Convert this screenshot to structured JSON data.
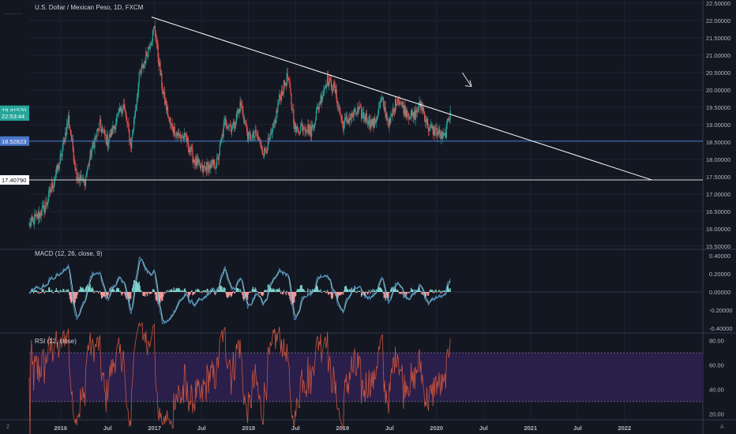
{
  "header": {
    "title": "U.S. Dollar / Mexican Peso, 1D, FXCM",
    "macd_label": "MACD (12, 26, close, 9)",
    "rsi_label": "RSI (12, close)",
    "corner_left_icon": "Z",
    "corner_right_icon": "A"
  },
  "colors": {
    "background": "#131722",
    "grid": "#1f2330",
    "candle_up": "#26a69a",
    "candle_down": "#ef5350",
    "trendline": "#ffffff",
    "support_line": "#4a76c9",
    "macd_line": "#4b8bbe",
    "signal_line": "#9ad7d0",
    "hist_up": "#7fd3c9",
    "hist_down": "#f29a9a",
    "rsi_line": "#c8543f",
    "rsi_band": "#2a1e4a"
  },
  "chart_data": [
    {
      "type": "candlestick",
      "name": "price",
      "ylim": [
        15.5,
        22.5
      ],
      "y_ticks": [
        15.5,
        16.0,
        16.5,
        17.0,
        17.5,
        18.0,
        18.5,
        19.0,
        19.5,
        20.0,
        20.5,
        21.0,
        21.5,
        22.0,
        22.5
      ],
      "y_tick_labels": [
        "15.50000",
        "16.00000",
        "16.50000",
        "17.00000",
        "17.50000",
        "18.00000",
        "18.50000",
        "19.00000",
        "19.50000",
        "20.00000",
        "20.50000",
        "21.00000",
        "21.50000",
        "22.00000",
        "22.50000"
      ],
      "x_range": [
        "2015-09",
        "2022-11"
      ],
      "x_ticks": [
        "2016",
        "Jul",
        "2017",
        "Jul",
        "2018",
        "Jul",
        "2019",
        "Jul",
        "2020",
        "Jul",
        "2021",
        "Jul",
        "2022"
      ],
      "x_tick_dates": [
        "2016-01",
        "2016-07",
        "2017-01",
        "2017-07",
        "2018-01",
        "2018-07",
        "2019-01",
        "2019-07",
        "2020-01",
        "2020-07",
        "2021-01",
        "2021-07",
        "2022-01"
      ],
      "price_path": [
        {
          "date": "2015-09",
          "value": 16.1
        },
        {
          "date": "2015-11",
          "value": 16.6
        },
        {
          "date": "2016-01",
          "value": 18.0
        },
        {
          "date": "2016-02",
          "value": 19.2
        },
        {
          "date": "2016-03",
          "value": 17.6
        },
        {
          "date": "2016-04",
          "value": 17.3
        },
        {
          "date": "2016-05",
          "value": 18.3
        },
        {
          "date": "2016-06",
          "value": 19.0
        },
        {
          "date": "2016-07",
          "value": 18.5
        },
        {
          "date": "2016-09",
          "value": 19.6
        },
        {
          "date": "2016-10",
          "value": 18.4
        },
        {
          "date": "2016-11",
          "value": 20.3
        },
        {
          "date": "2017-01",
          "value": 21.8
        },
        {
          "date": "2017-02",
          "value": 20.0
        },
        {
          "date": "2017-03",
          "value": 19.0
        },
        {
          "date": "2017-04",
          "value": 18.7
        },
        {
          "date": "2017-05",
          "value": 18.6
        },
        {
          "date": "2017-06",
          "value": 18.0
        },
        {
          "date": "2017-07",
          "value": 17.7
        },
        {
          "date": "2017-08",
          "value": 17.8
        },
        {
          "date": "2017-09",
          "value": 17.9
        },
        {
          "date": "2017-10",
          "value": 19.1
        },
        {
          "date": "2017-11",
          "value": 18.9
        },
        {
          "date": "2017-12",
          "value": 19.6
        },
        {
          "date": "2018-01",
          "value": 18.6
        },
        {
          "date": "2018-02",
          "value": 18.7
        },
        {
          "date": "2018-03",
          "value": 18.2
        },
        {
          "date": "2018-04",
          "value": 18.7
        },
        {
          "date": "2018-05",
          "value": 19.8
        },
        {
          "date": "2018-06",
          "value": 20.4
        },
        {
          "date": "2018-07",
          "value": 18.8
        },
        {
          "date": "2018-08",
          "value": 19.0
        },
        {
          "date": "2018-09",
          "value": 18.8
        },
        {
          "date": "2018-10",
          "value": 19.6
        },
        {
          "date": "2018-11",
          "value": 20.3
        },
        {
          "date": "2018-12",
          "value": 20.0
        },
        {
          "date": "2019-01",
          "value": 19.0
        },
        {
          "date": "2019-03",
          "value": 19.4
        },
        {
          "date": "2019-05",
          "value": 19.0
        },
        {
          "date": "2019-06",
          "value": 19.7
        },
        {
          "date": "2019-07",
          "value": 19.0
        },
        {
          "date": "2019-08",
          "value": 19.8
        },
        {
          "date": "2019-09",
          "value": 19.4
        },
        {
          "date": "2019-10",
          "value": 19.2
        },
        {
          "date": "2019-11",
          "value": 19.6
        },
        {
          "date": "2019-12",
          "value": 18.9
        },
        {
          "date": "2020-01",
          "value": 18.8
        },
        {
          "date": "2020-02",
          "value": 18.6
        },
        {
          "date": "2020-02-24",
          "value": 19.4
        }
      ],
      "price_tags": [
        {
          "value": 19.4157,
          "label": "19.41570",
          "color": "#26a69a"
        },
        {
          "value": 19.25,
          "label": "22:53:44",
          "color": "#26a69a"
        },
        {
          "value": 18.52823,
          "label": "18.52823",
          "color": "#4a76c9"
        },
        {
          "value": 17.4079,
          "label": "17.40790",
          "color": "#ffffff"
        }
      ],
      "drawings": {
        "trendline": [
          {
            "date": "2016-12-20",
            "value": 22.1
          },
          {
            "date": "2022-04-15",
            "value": 17.41
          }
        ],
        "support_horizontal": 18.52823,
        "lower_horizontal": 17.4079,
        "arrow_annotation": [
          {
            "date": "2020-04-10",
            "value": 20.5
          },
          {
            "date": "2020-05-15",
            "value": 20.1
          }
        ]
      }
    },
    {
      "type": "line",
      "name": "macd",
      "ylim": [
        -0.45,
        0.45
      ],
      "y_ticks": [
        0.4,
        0.2,
        0.0,
        -0.2,
        -0.4
      ],
      "y_tick_labels": [
        "0.40000",
        "0.20000",
        "0.00000",
        "-0.20000",
        "-0.40000"
      ],
      "series": [
        "MACD",
        "Signal",
        "Histogram"
      ]
    },
    {
      "type": "line",
      "name": "rsi",
      "ylim": [
        15,
        85
      ],
      "y_ticks": [
        80,
        60,
        40,
        20
      ],
      "y_tick_labels": [
        "80.00",
        "60.00",
        "40.00",
        "20.00"
      ],
      "bands": [
        30,
        70
      ]
    }
  ]
}
